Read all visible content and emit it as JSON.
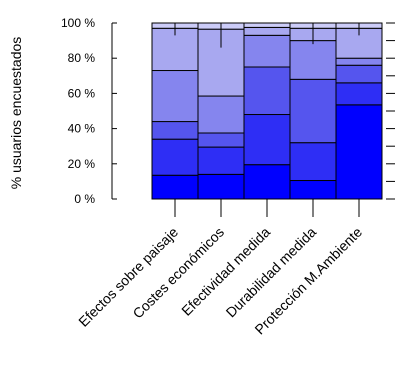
{
  "chart_data": {
    "type": "bar",
    "stacked": true,
    "ylabel": "% usuarios encuestados",
    "categories": [
      "Efectos sobre paisaje",
      "Costes económicos",
      "Efectividad medida",
      "Durabilidad  medida",
      "Protección M.Ambiente"
    ],
    "ylim": [
      0,
      100
    ],
    "yticks": [
      "0 %",
      "20 %",
      "40 %",
      "60 %",
      "80 %",
      "100 %"
    ],
    "series": [
      {
        "color": "#0000ff",
        "values": [
          13.5,
          14,
          19.5,
          10.5,
          53.5
        ]
      },
      {
        "color": "#2e2ef5",
        "values": [
          20.5,
          15.5,
          28.5,
          21.5,
          12.5
        ]
      },
      {
        "color": "#5555ee",
        "values": [
          10,
          8,
          27,
          36,
          10
        ]
      },
      {
        "color": "#8585ee",
        "values": [
          29,
          21,
          18,
          22,
          4
        ]
      },
      {
        "color": "#a8a8f0",
        "values": [
          24,
          38,
          4.5,
          7,
          17
        ]
      },
      {
        "color": "#ccccf8",
        "values": [
          3,
          3.5,
          2.5,
          3,
          3
        ]
      }
    ],
    "error_ticks": [
      [
        93,
        100
      ],
      [
        86,
        100
      ],
      [
        null,
        100
      ],
      [
        88,
        100
      ],
      [
        93,
        100
      ]
    ]
  }
}
